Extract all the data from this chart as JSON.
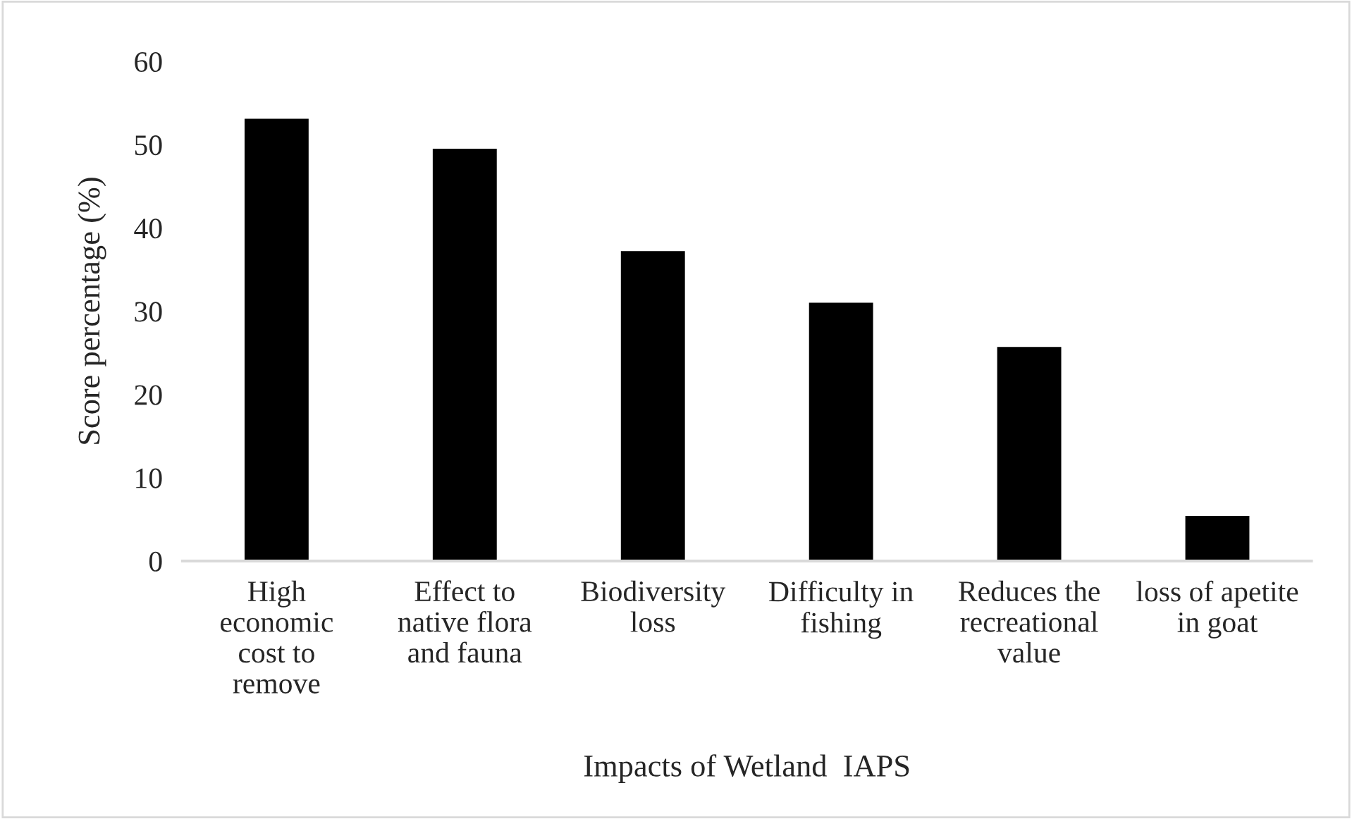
{
  "chart_data": {
    "type": "bar",
    "xlabel": "Impacts of Wetland  IAPS",
    "ylabel": "Score percentage (%)",
    "categories": [
      "High\neconomic\ncost to\nremove",
      "Effect to\nnative flora\nand fauna",
      "Biodiversity\nloss",
      "Difficulty in\nfishing",
      "Reduces the\nrecreational\nvalue",
      "loss of apetite\nin goat"
    ],
    "values": [
      53.0,
      49.4,
      37.1,
      30.9,
      25.6,
      5.3
    ],
    "color": "#000000",
    "ylim": [
      0,
      60
    ],
    "yticks": [
      0,
      10,
      20,
      30,
      40,
      50,
      60
    ],
    "grid": false,
    "legend": false
  }
}
